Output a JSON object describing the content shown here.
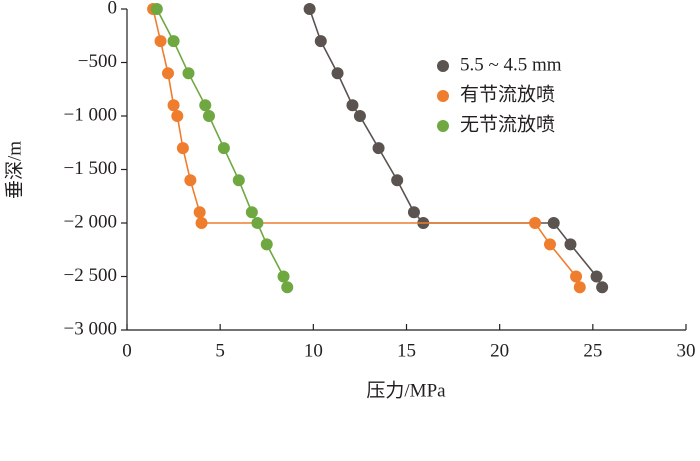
{
  "chart_data": {
    "type": "line",
    "xlabel": "压力/MPa",
    "ylabel": "垂深/m",
    "xlim": [
      0,
      30
    ],
    "xticks": [
      0,
      5,
      10,
      15,
      20,
      25,
      30
    ],
    "ylim": [
      -3000,
      0
    ],
    "yticks": [
      {
        "value": -3000,
        "label": "−3 000"
      },
      {
        "value": -2500,
        "label": "−2 500"
      },
      {
        "value": -2000,
        "label": "−2 000"
      },
      {
        "value": -1500,
        "label": "−1 500"
      },
      {
        "value": -1000,
        "label": "−1 000"
      },
      {
        "value": -500,
        "label": "−500"
      },
      0
    ],
    "legend": "upper right",
    "series": [
      {
        "name": "5.5 ~ 4.5 mm",
        "color": "#5a5350",
        "x": [
          9.8,
          10.4,
          11.3,
          12.1,
          12.5,
          13.5,
          14.5,
          15.4,
          15.9,
          22.9,
          23.8,
          25.2,
          25.5
        ],
        "y": [
          0,
          -300,
          -600,
          -900,
          -1000,
          -1300,
          -1600,
          -1900,
          -2000,
          -2000,
          -2200,
          -2500,
          -2600
        ]
      },
      {
        "name": "有节流放喷",
        "color": "#ef7d2e",
        "x": [
          1.4,
          1.8,
          2.2,
          2.5,
          2.7,
          3.0,
          3.4,
          3.9,
          4.0,
          21.9,
          22.7,
          24.1,
          24.3
        ],
        "y": [
          0,
          -300,
          -600,
          -900,
          -1000,
          -1300,
          -1600,
          -1900,
          -2000,
          -2000,
          -2200,
          -2500,
          -2600
        ]
      },
      {
        "name": "无节流放喷",
        "color": "#6fa840",
        "x": [
          1.6,
          2.5,
          3.3,
          4.2,
          4.4,
          5.2,
          6.0,
          6.7,
          7.0,
          7.5,
          8.4,
          8.6
        ],
        "y": [
          0,
          -300,
          -600,
          -900,
          -1000,
          -1300,
          -1600,
          -1900,
          -2000,
          -2200,
          -2500,
          -2600
        ]
      }
    ]
  }
}
